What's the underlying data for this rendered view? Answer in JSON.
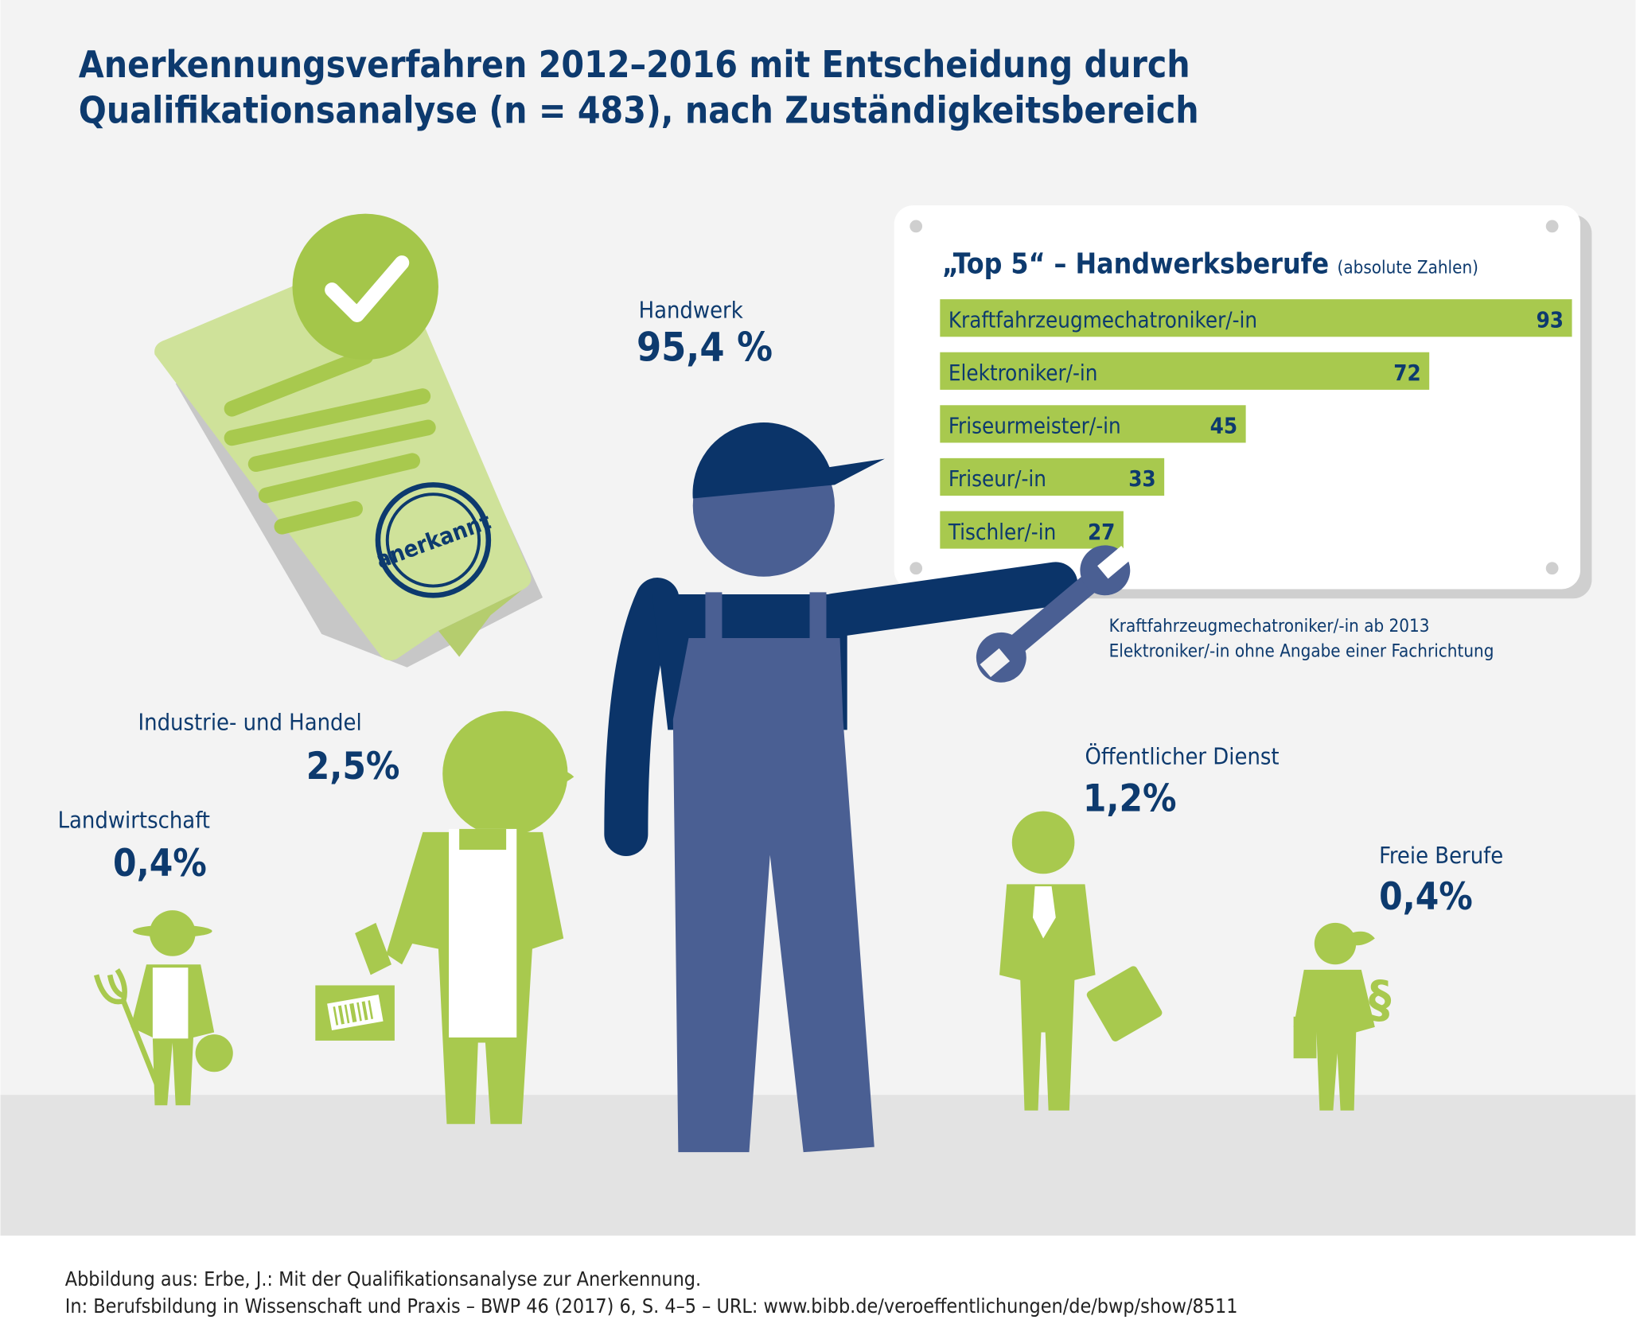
{
  "title": {
    "line1": "Anerkennungsverfahren 2012–2016 mit Entscheidung durch",
    "line2": "Qualifikationsanalyse (n = 483), nach Zuständigkeitsbereich"
  },
  "sectors": {
    "handwerk": {
      "label": "Handwerk",
      "value": "95,4 %"
    },
    "industrie": {
      "label": "Industrie- und Handel",
      "value": "2,5%"
    },
    "landwirtschaft": {
      "label": "Landwirtschaft",
      "value": "0,4%"
    },
    "oeffentlich": {
      "label": "Öffentlicher Dienst",
      "value": "1,2%"
    },
    "freie": {
      "label": "Freie Berufe",
      "value": "0,4%"
    }
  },
  "stamp": {
    "text": "anerkannt"
  },
  "icons": {
    "freie_berufe_symbol": "§"
  },
  "chart_data": {
    "type": "bar",
    "orientation": "horizontal",
    "title": "„Top 5“ – Handwerksberufe",
    "subtitle": "(absolute Zahlen)",
    "categories": [
      "Kraftfahrzeugmechatroniker/-in",
      "Elektroniker/-in",
      "Friseurmeister/-in",
      "Friseur/-in",
      "Tischler/-in"
    ],
    "values": [
      93,
      72,
      45,
      33,
      27
    ],
    "value_labels": [
      "93",
      "72",
      "45",
      "33",
      "27"
    ],
    "xlim": [
      0,
      93
    ],
    "notes": [
      "Kraftfahrzeugmechatroniker/-in ab 2013",
      "Elektroniker/-in ohne Angabe einer Fachrichtung"
    ]
  },
  "colors": {
    "navy": "#0d3a6e",
    "worker": "#4a5f93",
    "green": "#a8c94e",
    "light_green": "#cfe29a",
    "bg": "#f3f3f3",
    "floor": "#e3e3e3"
  },
  "footer": {
    "line1": "Abbildung aus: Erbe, J.: Mit der Qualifikationsanalyse zur Anerkennung.",
    "line2": "In: Berufsbildung in Wissenschaft und Praxis – BWP 46 (2017) 6, S. 4–5 – URL: www.bibb.de/veroeffentlichungen/de/bwp/show/8511"
  }
}
